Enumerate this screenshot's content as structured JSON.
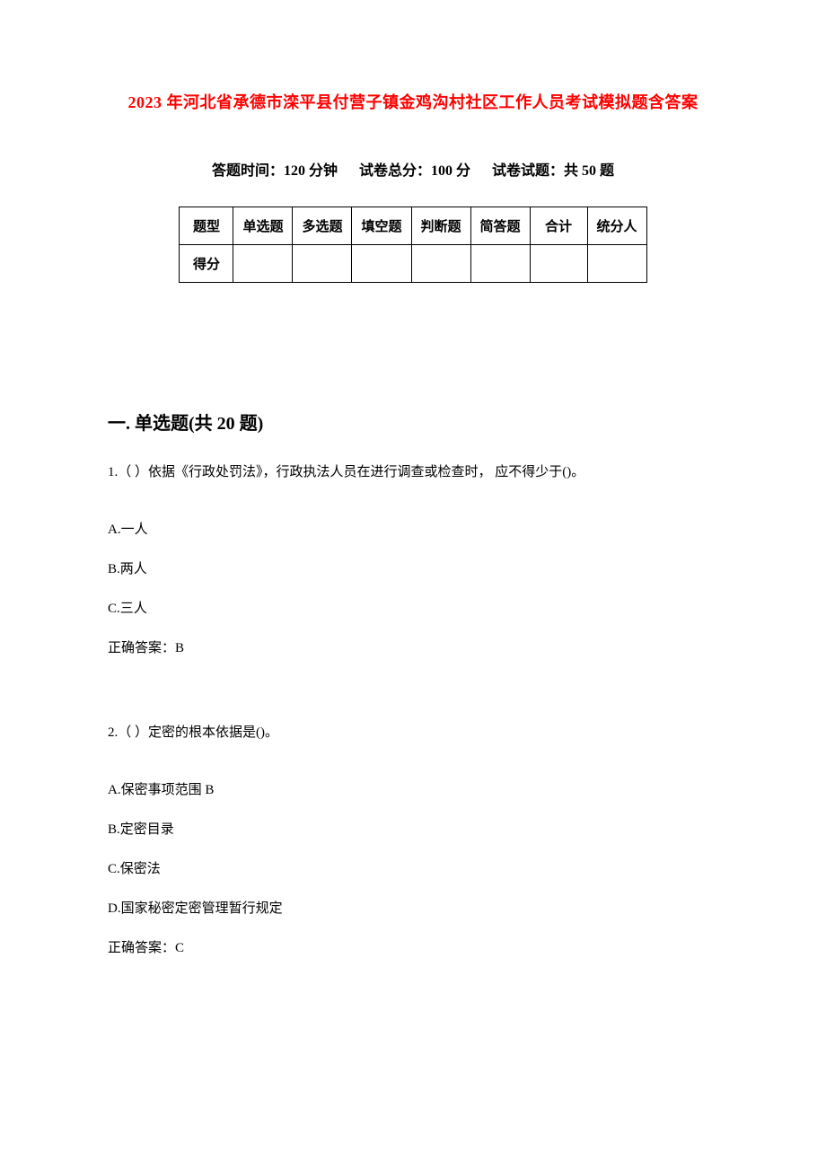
{
  "title": "2023 年河北省承德市滦平县付营子镇金鸡沟村社区工作人员考试模拟题含答案",
  "subtitle": {
    "time": "答题时间：120 分钟",
    "total": "试卷总分：100 分",
    "count": "试卷试题：共 50 题"
  },
  "table": {
    "header_row": [
      "题型",
      "单选题",
      "多选题",
      "填空题",
      "判断题",
      "简答题",
      "合计",
      "统分人"
    ],
    "score_label": "得分",
    "border_color": "#000000",
    "cell_bg": "#ffffff",
    "font_size": 15,
    "font_weight": "bold"
  },
  "section_heading": "一. 单选题(共 20 题)",
  "questions": [
    {
      "text": "1.（ ）依据《行政处罚法》，行政执法人员在进行调查或检查时，  应不得少于()。",
      "options": [
        "A.一人",
        "B.两人",
        "C.三人"
      ],
      "answer": "正确答案：B"
    },
    {
      "text": "2.（ ）定密的根本依据是()。",
      "options": [
        "A.保密事项范围 B",
        "B.定密目录",
        "C.保密法",
        "D.国家秘密定密管理暂行规定"
      ],
      "answer": "正确答案：C"
    }
  ],
  "colors": {
    "title_color": "#ff0000",
    "text_color": "#000000",
    "background": "#ffffff"
  },
  "typography": {
    "title_fontsize": 18,
    "subtitle_fontsize": 16,
    "heading_fontsize": 20,
    "body_fontsize": 15,
    "font_family": "SimSun"
  }
}
